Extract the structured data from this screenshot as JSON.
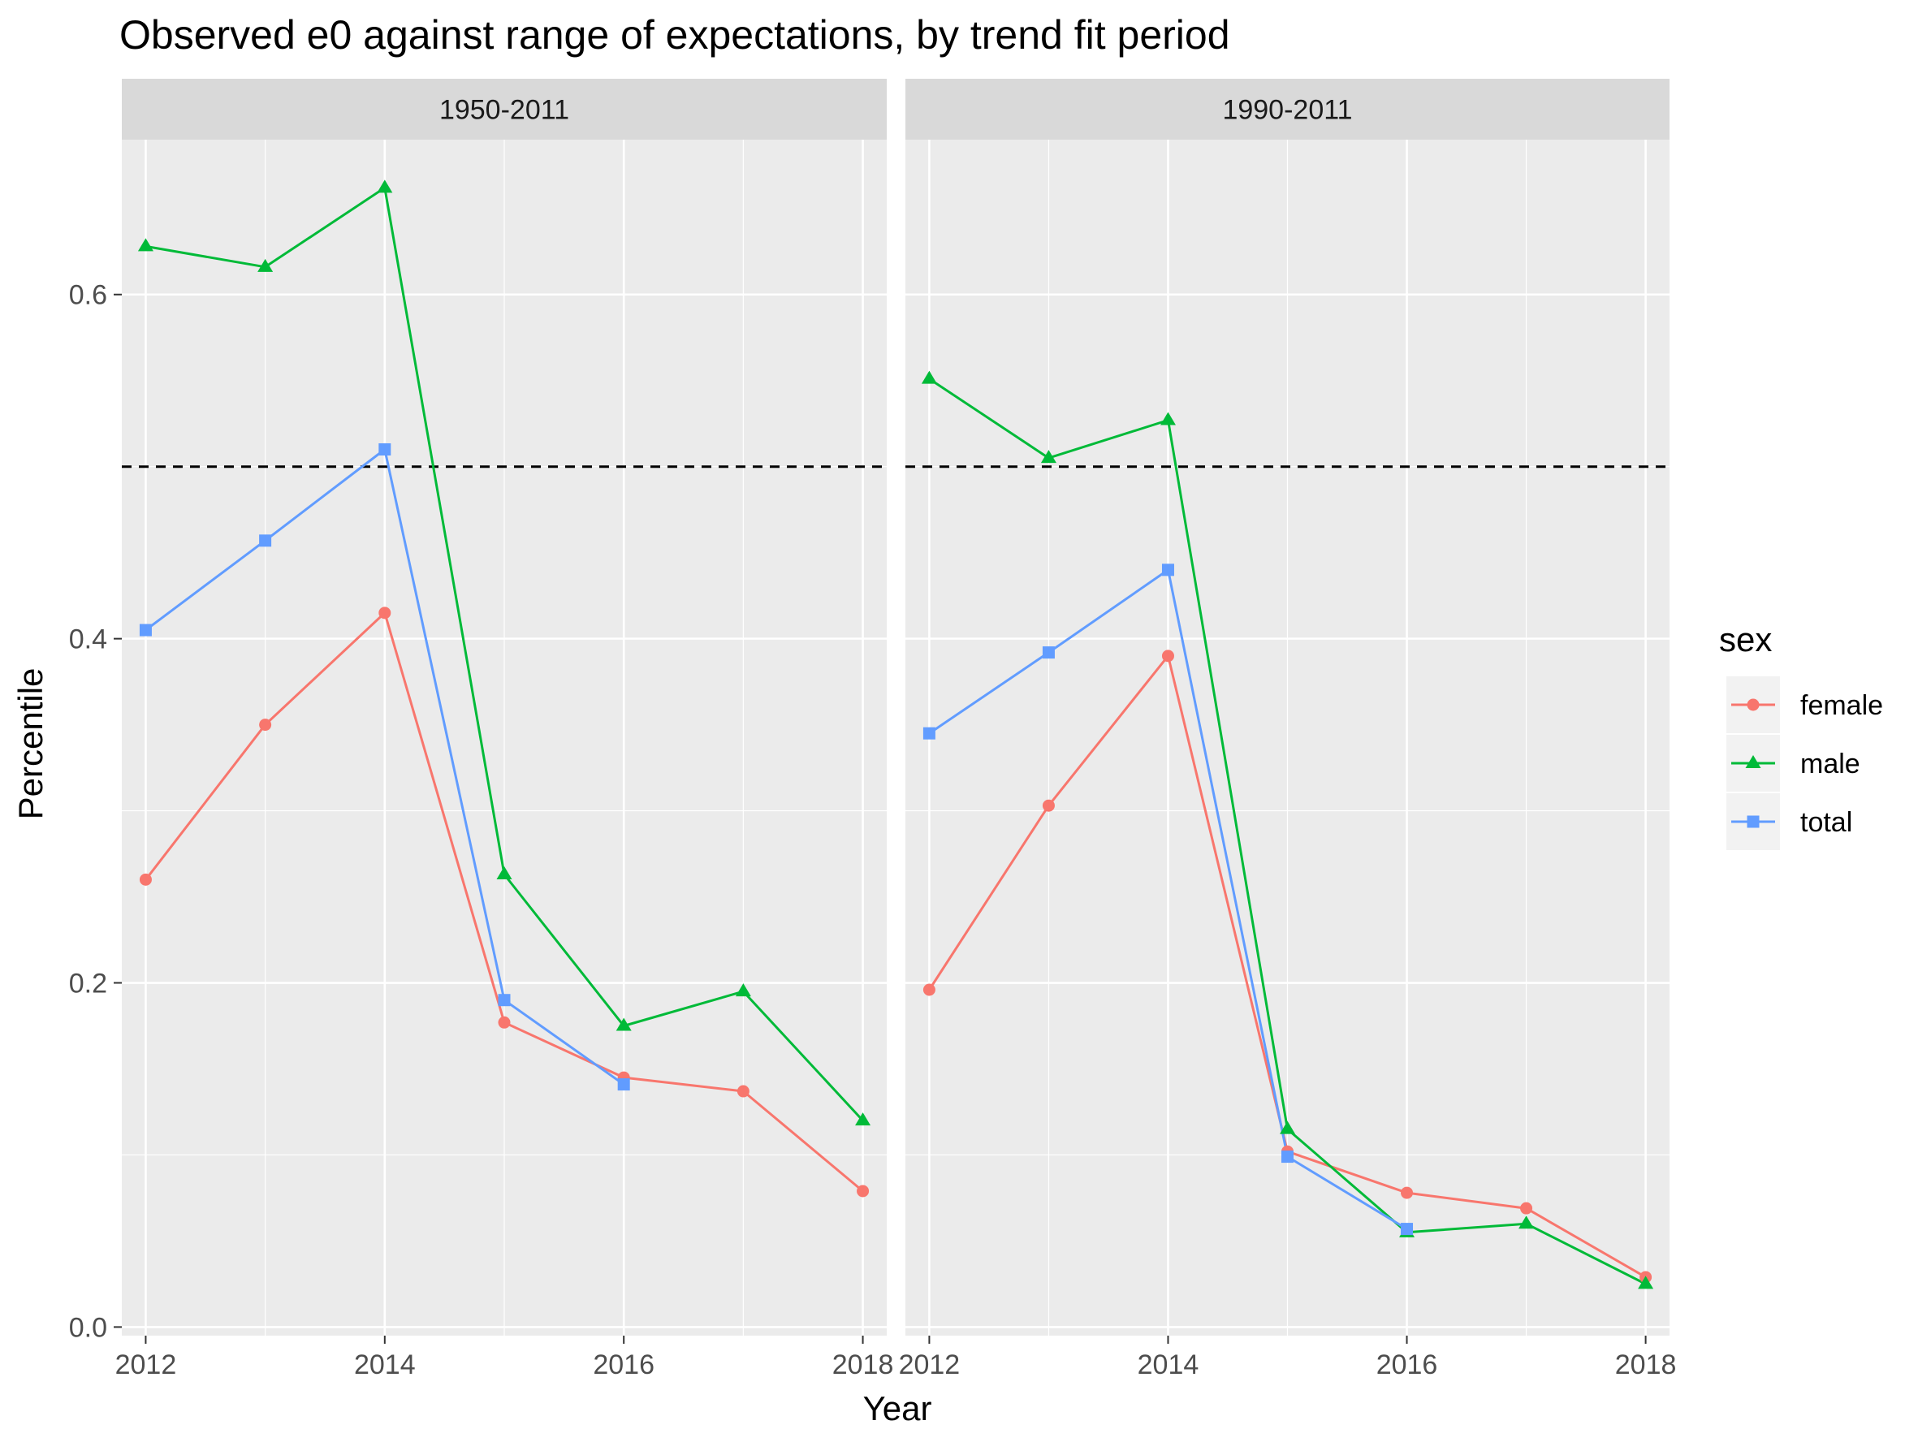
{
  "chart_data": {
    "type": "line",
    "title": "Observed e0 against range of expectations, by trend fit period",
    "xlabel": "Year",
    "ylabel": "Percentile",
    "xlim": [
      2011.8,
      2018.2
    ],
    "ylim": [
      -0.005,
      0.69
    ],
    "x_ticks": [
      2012,
      2014,
      2016,
      2018
    ],
    "y_ticks": [
      0.0,
      0.2,
      0.4,
      0.6
    ],
    "y_tick_labels": [
      "0.0",
      "0.2",
      "0.4",
      "0.6"
    ],
    "x_tick_labels": [
      "2012",
      "2014",
      "2016",
      "2018"
    ],
    "reference_line": {
      "y": 0.5,
      "style": "dashed",
      "color": "#000000"
    },
    "grid": true,
    "legend": {
      "title": "sex",
      "position": "right"
    },
    "facets": [
      {
        "label": "1950-2011",
        "series": [
          {
            "name": "female",
            "color": "#F8766D",
            "marker": "circle",
            "x": [
              2012,
              2013,
              2014,
              2015,
              2016,
              2017,
              2018
            ],
            "y": [
              0.26,
              0.35,
              0.415,
              0.177,
              0.145,
              0.137,
              0.079
            ]
          },
          {
            "name": "male",
            "color": "#00BA38",
            "marker": "triangle",
            "x": [
              2012,
              2013,
              2014,
              2015,
              2016,
              2017,
              2018
            ],
            "y": [
              0.628,
              0.616,
              0.662,
              0.263,
              0.175,
              0.195,
              0.12
            ]
          },
          {
            "name": "total",
            "color": "#619CFF",
            "marker": "square",
            "x": [
              2012,
              2013,
              2014,
              2015,
              2016
            ],
            "y": [
              0.405,
              0.457,
              0.51,
              0.19,
              0.141
            ]
          }
        ]
      },
      {
        "label": "1990-2011",
        "series": [
          {
            "name": "female",
            "color": "#F8766D",
            "marker": "circle",
            "x": [
              2012,
              2013,
              2014,
              2015,
              2016,
              2017,
              2018
            ],
            "y": [
              0.196,
              0.303,
              0.39,
              0.102,
              0.078,
              0.069,
              0.029
            ]
          },
          {
            "name": "male",
            "color": "#00BA38",
            "marker": "triangle",
            "x": [
              2012,
              2013,
              2014,
              2015,
              2016,
              2017,
              2018
            ],
            "y": [
              0.551,
              0.505,
              0.527,
              0.115,
              0.055,
              0.06,
              0.025
            ]
          },
          {
            "name": "total",
            "color": "#619CFF",
            "marker": "square",
            "x": [
              2012,
              2013,
              2014,
              2015,
              2016
            ],
            "y": [
              0.345,
              0.392,
              0.44,
              0.099,
              0.057
            ]
          }
        ]
      }
    ]
  }
}
